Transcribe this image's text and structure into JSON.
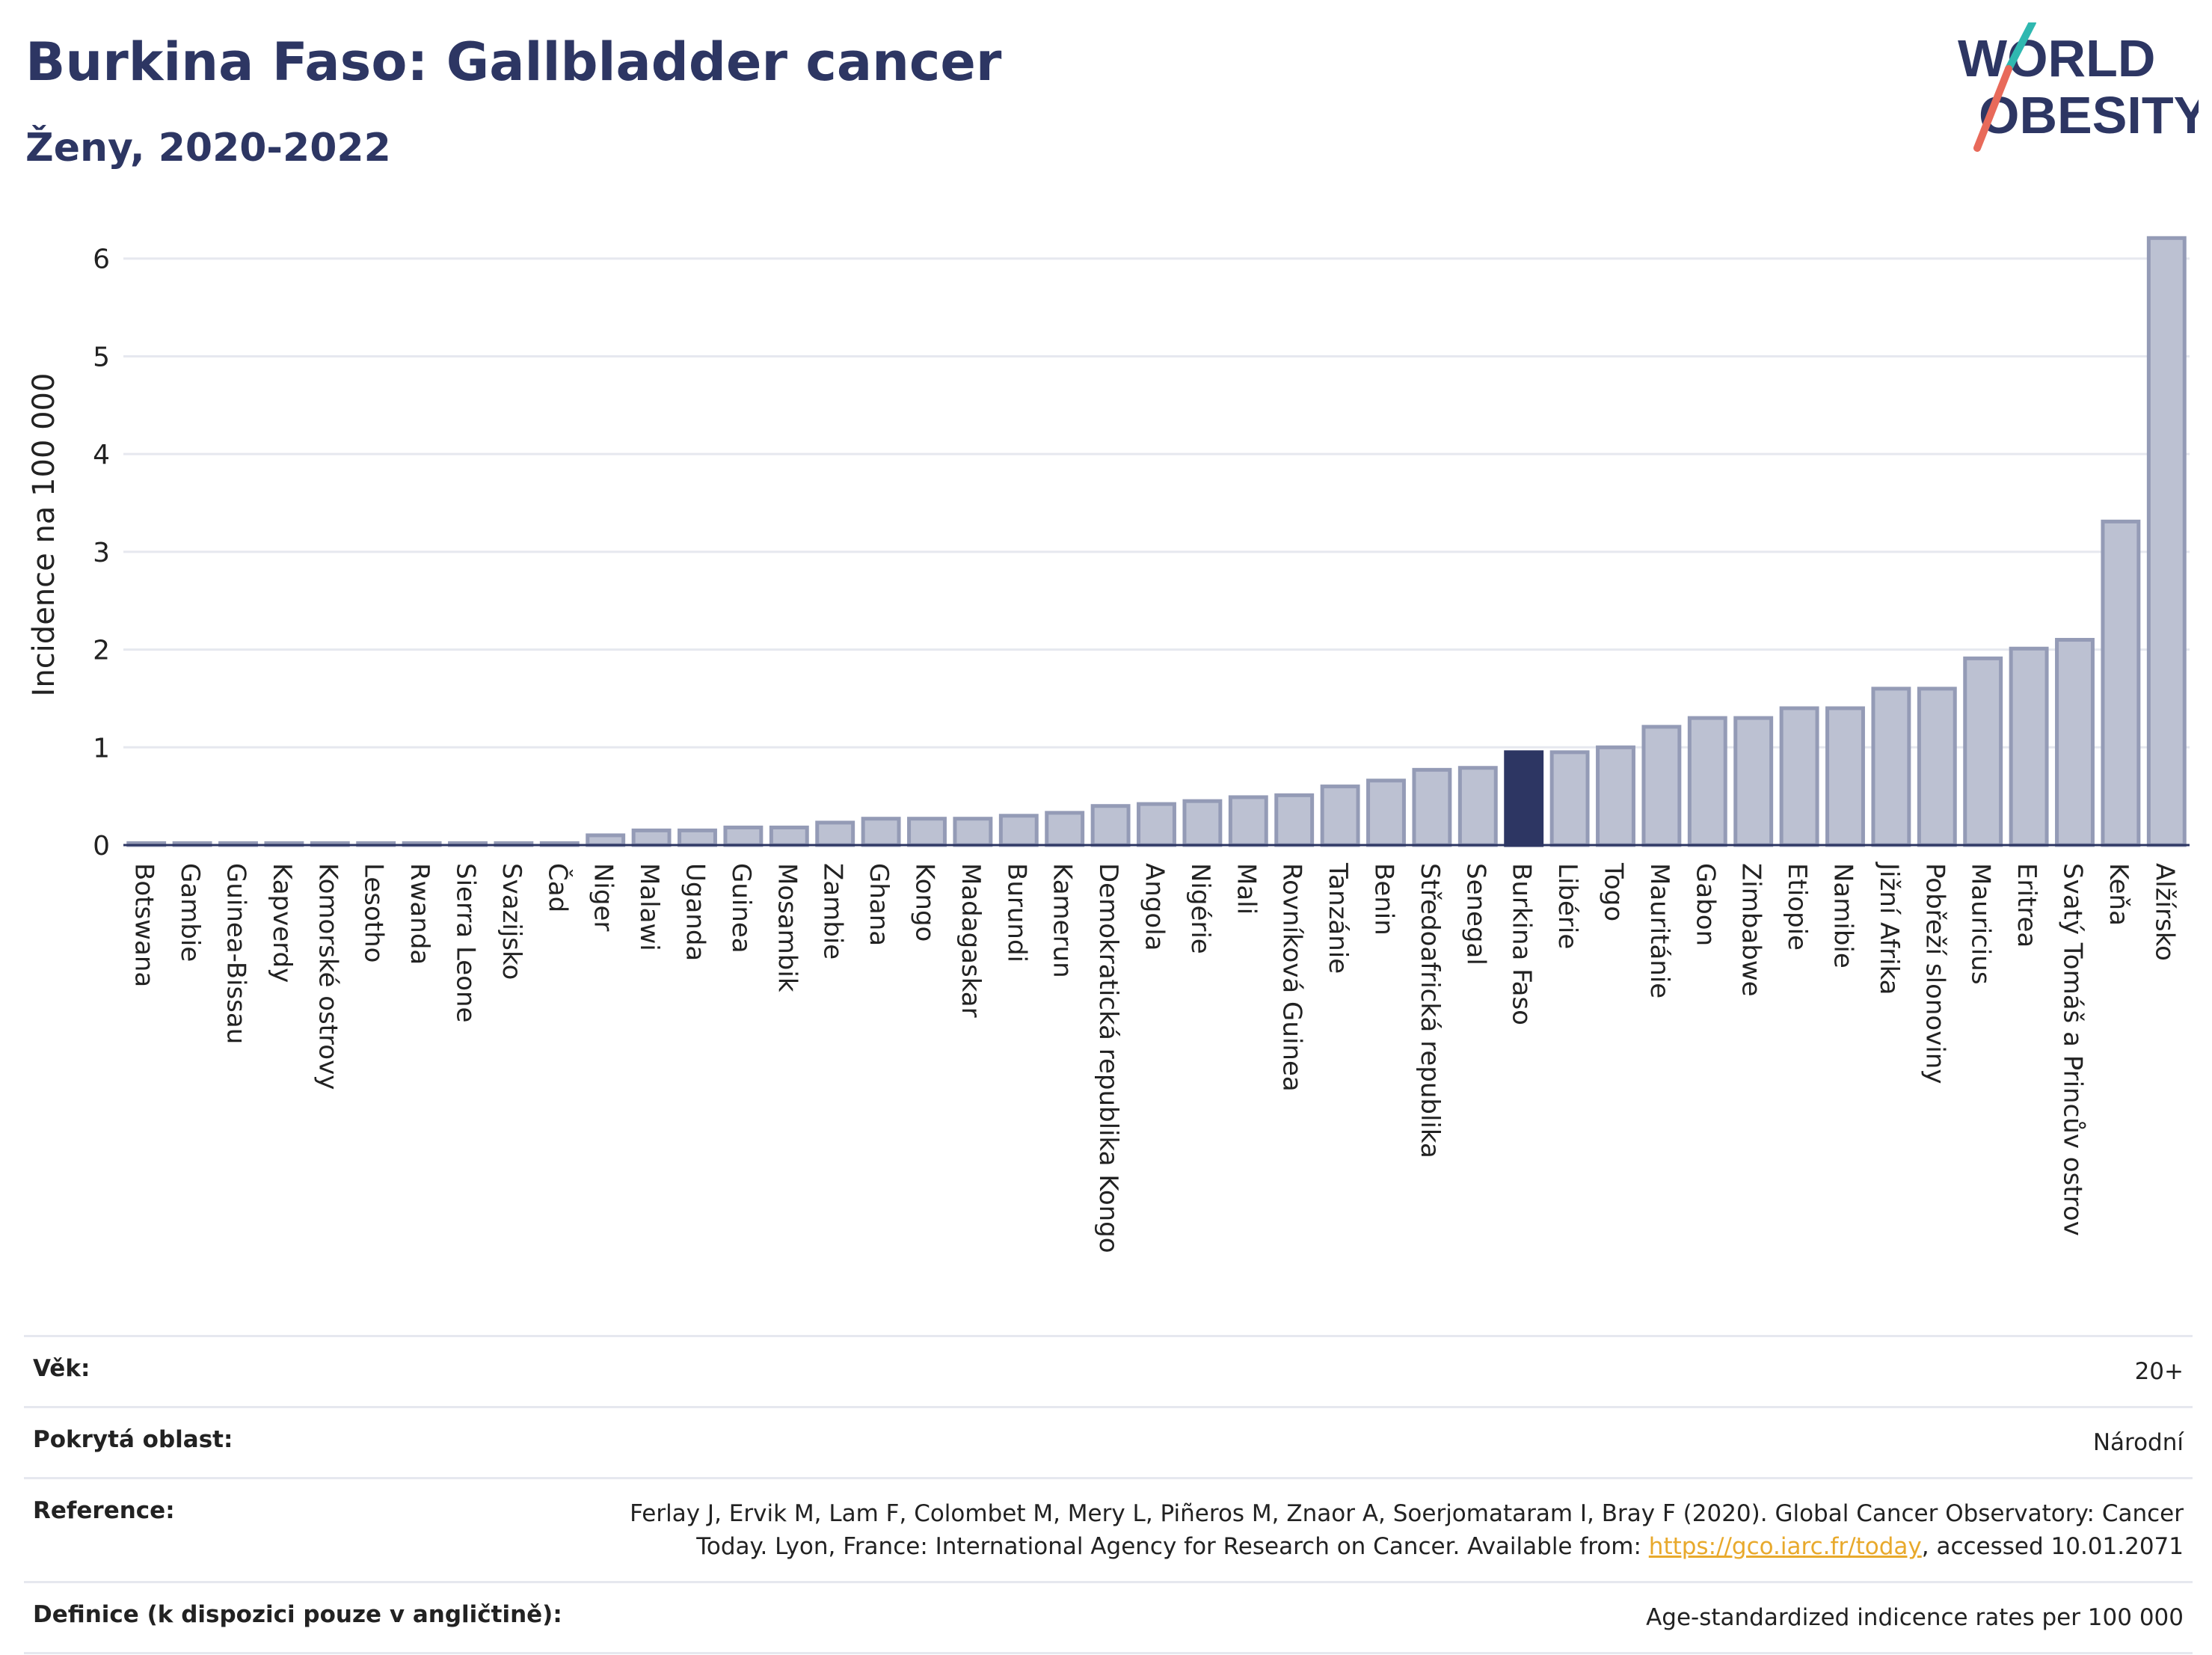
{
  "header": {
    "title": "Burkina Faso: Gallbladder cancer",
    "subtitle": "Ženy, 2020-2022",
    "logo_line1": "WORLD",
    "logo_line2": "OBESITY"
  },
  "colors": {
    "title": "#2d3663",
    "bar": "#bcc1d2",
    "bar_stroke": "#949bb6",
    "highlight": "#2d3663",
    "link": "#e8a92c",
    "logo_teal": "#2fb8b0",
    "logo_coral": "#e86a5a"
  },
  "chart_data": {
    "type": "bar",
    "ylabel": "Incidence na 100 000",
    "ylim": [
      0,
      6.35
    ],
    "yticks": [
      0,
      1,
      2,
      3,
      4,
      5,
      6
    ],
    "grid": true,
    "highlight": "Burkina Faso",
    "categories": [
      "Botswana",
      "Gambie",
      "Guinea-Bissau",
      "Kapverdy",
      "Komorské ostrovy",
      "Lesotho",
      "Rwanda",
      "Sierra Leone",
      "Svazijsko",
      "Čad",
      "Niger",
      "Malawi",
      "Uganda",
      "Guinea",
      "Mosambik",
      "Zambie",
      "Ghana",
      "Kongo",
      "Madagaskar",
      "Burundi",
      "Kamerun",
      "Demokratická republika Kongo",
      "Angola",
      "Nigérie",
      "Mali",
      "Rovníková Guinea",
      "Tanzánie",
      "Benin",
      "Středoafrická republika",
      "Senegal",
      "Burkina Faso",
      "Libérie",
      "Togo",
      "Mauritánie",
      "Gabon",
      "Zimbabwe",
      "Etiopie",
      "Namibie",
      "Jižní Afrika",
      "Pobřeží slonoviny",
      "Mauricius",
      "Eritrea",
      "Svatý Tomáš a Princův ostrov",
      "Keňa",
      "Alžírsko"
    ],
    "values": [
      0.02,
      0.02,
      0.02,
      0.02,
      0.02,
      0.02,
      0.02,
      0.02,
      0.02,
      0.02,
      0.1,
      0.15,
      0.15,
      0.18,
      0.18,
      0.23,
      0.27,
      0.27,
      0.27,
      0.3,
      0.33,
      0.4,
      0.42,
      0.45,
      0.49,
      0.51,
      0.6,
      0.66,
      0.77,
      0.79,
      0.95,
      0.95,
      1.0,
      1.21,
      1.3,
      1.3,
      1.4,
      1.4,
      1.6,
      1.6,
      1.91,
      2.01,
      2.1,
      3.31,
      6.21
    ]
  },
  "meta": {
    "age_label": "Věk:",
    "age_value": "20+",
    "area_label": "Pokrytá oblast:",
    "area_value": "Národní",
    "ref_label": "Reference:",
    "ref_line1": "Ferlay J, Ervik M, Lam F, Colombet M, Mery L, Piñeros M, Znaor A, Soerjomataram I, Bray F (2020). Global Cancer Observatory: Cancer",
    "ref_line2_pre": "Today. Lyon, France: International Agency for Research on Cancer. Available from: ",
    "ref_link": "https://gco.iarc.fr/today",
    "ref_line2_post": ", accessed 10.01.2071",
    "def_label": "Definice (k dispozici pouze v angličtině):",
    "def_value": "Age-standardized indicence rates per 100 000"
  }
}
